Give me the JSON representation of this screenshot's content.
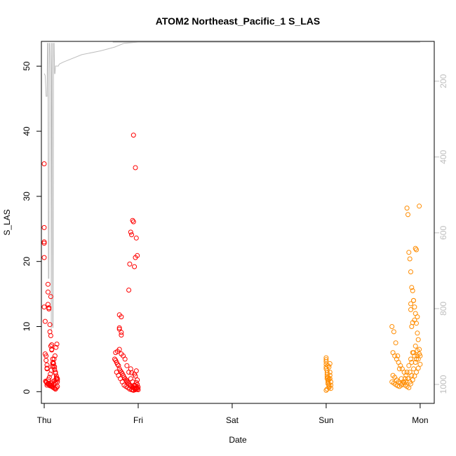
{
  "chart_data": {
    "type": "scatter",
    "title": "ATOM2 Northeast_Pacific_1 S_LAS",
    "xlabel": "Date",
    "ylabel": "S_LAS",
    "xlim": [
      -0.03,
      4.15
    ],
    "ylim": [
      -1.8,
      53.8
    ],
    "x_ticks": [
      {
        "value": 0,
        "label": "Thu"
      },
      {
        "value": 1,
        "label": "Fri"
      },
      {
        "value": 2,
        "label": "Sat"
      },
      {
        "value": 3,
        "label": "Sun"
      },
      {
        "value": 4,
        "label": "Mon"
      }
    ],
    "y_ticks": [
      0,
      10,
      20,
      30,
      40,
      50
    ],
    "y2_ticks": [
      200,
      400,
      600,
      800,
      1000
    ],
    "y2lim": [
      95,
      1050
    ],
    "colors": {
      "series_red": "#ff0000",
      "series_orange": "#ff8c00",
      "depth_line": "#bebebe"
    },
    "depth_trace": {
      "x": [
        0.0,
        0.01,
        0.02,
        0.03,
        0.035,
        0.04,
        0.045,
        0.05,
        0.055,
        0.06,
        0.07,
        0.075,
        0.08,
        0.085,
        0.09,
        0.095,
        0.1,
        0.105,
        0.11,
        0.115,
        0.12,
        0.125,
        0.13,
        0.135,
        0.14,
        0.145,
        0.15,
        0.16,
        0.2,
        0.4,
        0.6,
        0.75,
        0.85,
        0.95,
        1.0,
        1.0,
        1.0,
        0.99,
        0.99,
        0.975,
        0.975,
        0.96,
        0.96,
        0.93,
        0.93,
        0.9,
        0.9,
        0.88,
        0.88,
        0.84,
        0.84,
        0.81,
        0.81,
        0.78,
        0.78,
        0.75,
        0.75,
        0.73,
        0.73,
        0.75,
        0.8,
        0.85,
        0.88,
        0.9,
        0.92,
        0.93,
        0.935,
        0.94,
        0.945,
        0.95,
        0.955,
        0.96,
        0.965,
        0.97,
        0.975,
        0.98,
        0.985,
        0.99,
        0.995,
        1.0,
        1.3,
        1.7,
        2.2,
        2.6,
        2.95,
        3.01,
        3.015,
        3.02,
        3.025,
        3.03,
        3.035,
        3.04,
        3.045,
        3.05,
        3.06,
        3.2,
        3.4,
        3.6,
        3.7,
        3.75,
        3.76,
        3.77,
        3.78,
        3.79,
        3.8,
        3.805,
        3.81,
        3.815,
        3.82,
        3.83,
        3.835,
        3.84,
        3.845,
        3.85,
        3.86,
        3.87,
        3.875,
        3.88,
        3.885,
        3.89,
        3.895,
        3.9,
        3.905,
        3.91,
        3.915,
        3.92,
        3.925,
        3.93,
        3.935,
        3.94,
        3.945,
        3.95,
        3.955,
        3.96,
        3.965,
        3.97,
        3.98,
        4.0
      ],
      "y": [
        180,
        185,
        240,
        240,
        100,
        100,
        720,
        720,
        100,
        100,
        180,
        860,
        100,
        100,
        850,
        850,
        100,
        100,
        180,
        180,
        160,
        160,
        160,
        160,
        160,
        160,
        160,
        155,
        150,
        130,
        120,
        110,
        100,
        98,
        97,
        97,
        97,
        97,
        97,
        97,
        97,
        97,
        97,
        97,
        97,
        97,
        97,
        97,
        97,
        97,
        97,
        97,
        97,
        97,
        97,
        97,
        97,
        97,
        97,
        97,
        97,
        97,
        97,
        97,
        97,
        97,
        97,
        97,
        97,
        97,
        97,
        97,
        97,
        97,
        97,
        97,
        97,
        97,
        97,
        97,
        97,
        97,
        97,
        97,
        97,
        97,
        97,
        97,
        97,
        97,
        97,
        97,
        97,
        97,
        97,
        97,
        97,
        97,
        97,
        97,
        97,
        97,
        97,
        97,
        97,
        97,
        97,
        97,
        97,
        97,
        97,
        97,
        97,
        97,
        97,
        97,
        97,
        97,
        97,
        97,
        97,
        97,
        97,
        97,
        97,
        97,
        97,
        97,
        97,
        97,
        97,
        97,
        97,
        97,
        97,
        97,
        97,
        97
      ]
    },
    "series": [
      {
        "color": "red",
        "x": [
          0.0,
          0.0,
          0.0,
          0.0,
          0.0,
          0.0,
          0.01,
          0.01,
          0.02,
          0.02,
          0.03,
          0.03,
          0.03,
          0.04,
          0.04,
          0.04,
          0.05,
          0.05,
          0.06,
          0.06,
          0.07,
          0.07,
          0.07,
          0.08,
          0.08,
          0.08,
          0.09,
          0.09,
          0.1,
          0.1,
          0.11,
          0.11,
          0.12,
          0.12,
          0.13,
          0.13,
          0.14,
          0.14,
          0.02,
          0.04,
          0.05,
          0.06,
          0.07,
          0.08,
          0.09,
          0.1,
          0.11,
          0.12,
          0.13,
          0.14,
          0.015,
          0.025,
          0.035,
          0.045,
          0.055,
          0.065,
          0.075,
          0.085,
          0.095,
          0.105,
          0.115,
          0.125,
          0.135,
          0.03,
          0.05,
          0.07,
          0.09,
          0.11,
          0.13,
          0.06,
          0.08,
          0.1,
          0.12,
          0.14,
          0.75,
          0.76,
          0.77,
          0.78,
          0.79,
          0.8,
          0.81,
          0.82,
          0.83,
          0.84,
          0.85,
          0.86,
          0.87,
          0.88,
          0.89,
          0.9,
          0.91,
          0.92,
          0.93,
          0.94,
          0.95,
          0.96,
          0.97,
          0.98,
          0.99,
          1.0,
          0.76,
          0.78,
          0.8,
          0.82,
          0.84,
          0.86,
          0.88,
          0.9,
          0.92,
          0.94,
          0.96,
          0.98,
          1.0,
          0.77,
          0.79,
          0.81,
          0.83,
          0.85,
          0.87,
          0.89,
          0.91,
          0.93,
          0.95,
          0.97,
          0.99,
          0.8,
          0.8,
          0.8,
          0.82,
          0.82,
          0.82,
          0.9,
          0.91,
          0.92,
          0.93,
          0.94,
          0.95,
          0.96,
          0.97,
          0.98,
          0.99,
          0.95,
          0.97,
          0.98,
          0.92,
          0.93,
          0.96,
          0.97,
          0.99,
          0.98,
          0.99,
          0.97,
          0.98,
          0.94
        ],
        "y": [
          35.0,
          25.2,
          23.0,
          22.8,
          20.6,
          13.0,
          10.8,
          5.8,
          5.5,
          4.8,
          4.1,
          3.6,
          3.5,
          16.5,
          15.3,
          13.4,
          12.9,
          12.7,
          10.3,
          9.2,
          8.6,
          14.6,
          7.0,
          7.2,
          6.5,
          6.4,
          5.0,
          4.4,
          4.3,
          3.9,
          3.8,
          3.4,
          3.0,
          2.8,
          2.4,
          2.1,
          2.0,
          1.8,
          1.5,
          1.3,
          1.2,
          1.0,
          0.9,
          0.8,
          0.7,
          0.6,
          0.5,
          0.4,
          0.6,
          0.8,
          1.6,
          1.4,
          1.2,
          1.9,
          2.2,
          2.7,
          3.3,
          3.9,
          4.5,
          5.0,
          5.5,
          6.8,
          7.3,
          1.0,
          1.1,
          1.3,
          1.5,
          1.7,
          2.0,
          0.9,
          1.0,
          1.2,
          1.4,
          1.5,
          5.0,
          4.8,
          4.5,
          4.2,
          4.0,
          3.5,
          3.2,
          3.0,
          2.8,
          2.5,
          2.2,
          2.0,
          1.8,
          1.6,
          1.4,
          1.2,
          1.0,
          0.9,
          0.8,
          0.7,
          0.6,
          0.5,
          0.4,
          0.5,
          0.6,
          0.7,
          6.0,
          6.2,
          6.5,
          5.8,
          5.5,
          5.0,
          4.0,
          3.0,
          2.0,
          1.5,
          1.0,
          0.5,
          0.3,
          3.0,
          2.5,
          2.0,
          1.5,
          1.0,
          0.8,
          0.6,
          0.4,
          0.3,
          0.2,
          0.3,
          0.4,
          9.6,
          9.8,
          11.8,
          11.5,
          9.1,
          8.7,
          15.6,
          19.6,
          24.5,
          24.1,
          26.3,
          26.1,
          19.2,
          20.6,
          23.6,
          20.9,
          39.4,
          34.4,
          3.2,
          3.5,
          2.9,
          2.7,
          2.4,
          1.8,
          1.4,
          1.1,
          0.9,
          0.6,
          0.3
        ],
        "offset_x_note": ""
      },
      {
        "color": "orange",
        "x": [
          3.0,
          3.0,
          3.0,
          3.0,
          3.0,
          3.0,
          3.01,
          3.01,
          3.01,
          3.01,
          3.01,
          3.02,
          3.02,
          3.02,
          3.02,
          3.03,
          3.03,
          3.03,
          3.04,
          3.04,
          3.04,
          3.05,
          3.05,
          3.05,
          3.0,
          3.01,
          3.02,
          3.03,
          3.04,
          3.02,
          3.03,
          3.7,
          3.72,
          3.74,
          3.76,
          3.78,
          3.8,
          3.82,
          3.84,
          3.86,
          3.88,
          3.9,
          3.92,
          3.94,
          3.96,
          3.98,
          4.0,
          3.71,
          3.73,
          3.75,
          3.77,
          3.79,
          3.81,
          3.83,
          3.85,
          3.87,
          3.89,
          3.91,
          3.93,
          3.95,
          3.97,
          3.99,
          3.7,
          3.72,
          3.74,
          3.76,
          3.78,
          3.8,
          3.82,
          3.84,
          3.86,
          3.88,
          3.9,
          3.92,
          3.94,
          3.96,
          3.98,
          4.0,
          3.71,
          3.73,
          3.75,
          3.77,
          3.79,
          3.81,
          3.83,
          3.85,
          3.87,
          3.89,
          3.91,
          3.93,
          3.95,
          3.97,
          3.99,
          3.9,
          3.9,
          3.91,
          3.92,
          3.93,
          3.9,
          3.89,
          3.88,
          3.87,
          3.86,
          3.91,
          3.92,
          3.93,
          3.94,
          3.95,
          3.94,
          3.96,
          3.97,
          3.98,
          3.97,
          3.95,
          3.96,
          3.99
        ],
        "y": [
          5.2,
          4.9,
          4.6,
          4.2,
          3.8,
          3.5,
          3.2,
          2.9,
          2.6,
          2.3,
          2.0,
          1.8,
          1.6,
          1.4,
          1.2,
          1.0,
          0.8,
          0.6,
          3.0,
          2.5,
          2.0,
          1.5,
          1.0,
          0.5,
          0.2,
          0.4,
          4.0,
          3.8,
          4.3,
          2.2,
          1.9,
          10.0,
          9.2,
          7.5,
          5.5,
          3.5,
          2.0,
          1.5,
          1.0,
          0.8,
          0.6,
          1.2,
          1.8,
          2.4,
          3.0,
          3.6,
          4.2,
          6.0,
          5.5,
          5.0,
          4.5,
          4.0,
          3.5,
          3.0,
          2.5,
          2.0,
          1.5,
          2.5,
          3.5,
          4.5,
          5.5,
          6.5,
          1.5,
          1.3,
          1.1,
          0.9,
          0.8,
          1.0,
          1.5,
          2.0,
          3.0,
          4.0,
          5.0,
          6.0,
          5.5,
          5.0,
          5.0,
          5.5,
          2.5,
          2.2,
          1.8,
          1.5,
          1.3,
          1.2,
          1.4,
          1.6,
          2.0,
          3.0,
          4.5,
          6.0,
          7.0,
          6.3,
          5.8,
          13.5,
          12.6,
          10.0,
          10.6,
          14.0,
          18.4,
          20.4,
          21.4,
          27.2,
          28.2,
          16.0,
          15.5,
          14.0,
          13.0,
          12.0,
          11.0,
          10.5,
          9.0,
          8.0,
          11.5,
          22.0,
          21.8,
          28.5
        ],
        "offset_x_note": ""
      }
    ]
  }
}
